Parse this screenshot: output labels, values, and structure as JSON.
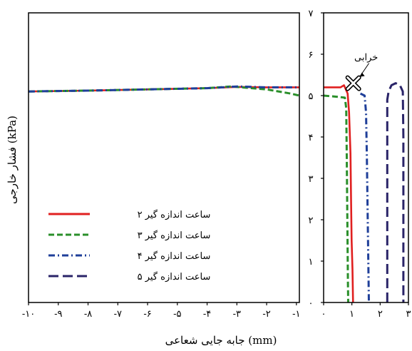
{
  "chart_data": {
    "type": "line",
    "xlabel": "جابه جایی شعاعی (mm)",
    "ylabel": "فشار خارجی (kPa)",
    "x_left_ticks": [
      {
        "v": -10,
        "label": "-۱۰"
      },
      {
        "v": -9,
        "label": "-۹"
      },
      {
        "v": -8,
        "label": "-۸"
      },
      {
        "v": -7,
        "label": "-۷"
      },
      {
        "v": -6,
        "label": "-۶"
      },
      {
        "v": -5,
        "label": "-۵"
      },
      {
        "v": -4,
        "label": "-۴"
      },
      {
        "v": -3,
        "label": "-۳"
      },
      {
        "v": -2,
        "label": "-۲"
      },
      {
        "v": -1,
        "label": "-۱"
      }
    ],
    "x_right_ticks": [
      {
        "v": 0,
        "label": "۰"
      },
      {
        "v": 1,
        "label": "۱"
      },
      {
        "v": 2,
        "label": "۲"
      },
      {
        "v": 3,
        "label": "۳"
      }
    ],
    "y_ticks": [
      {
        "v": 0,
        "label": "۰"
      },
      {
        "v": 1,
        "label": "۱"
      },
      {
        "v": 2,
        "label": "۲"
      },
      {
        "v": 3,
        "label": "۳"
      },
      {
        "v": 4,
        "label": "۴"
      },
      {
        "v": 5,
        "label": "۵"
      },
      {
        "v": 6,
        "label": "۶"
      },
      {
        "v": 7,
        "label": "۷"
      }
    ],
    "ylim": [
      0,
      7
    ],
    "xlim_left": [
      -10,
      -0.9
    ],
    "xlim_right": [
      0,
      3
    ],
    "series": [
      {
        "name": "ساعت اندازه گیر ۲",
        "color": "#e02020",
        "dash": "solid",
        "left": [
          [
            -10,
            5.1
          ],
          [
            -8,
            5.12
          ],
          [
            -6,
            5.15
          ],
          [
            -4,
            5.18
          ],
          [
            -3,
            5.21
          ],
          [
            -2,
            5.2
          ],
          [
            -1,
            5.2
          ],
          [
            -0.9,
            5.2
          ]
        ],
        "right": [
          [
            0,
            5.2
          ],
          [
            0.6,
            5.2
          ],
          [
            0.72,
            5.25
          ],
          [
            0.85,
            5.05
          ],
          [
            0.9,
            4.6
          ],
          [
            0.95,
            3.6
          ],
          [
            0.97,
            2.5
          ],
          [
            0.99,
            1.5
          ],
          [
            1.02,
            0.8
          ],
          [
            1.04,
            0
          ]
        ]
      },
      {
        "name": "ساعت اندازه گیر ۳",
        "color": "#2a8f2a",
        "dash": "dashed",
        "left": [
          [
            -10,
            5.1
          ],
          [
            -8,
            5.12
          ],
          [
            -6,
            5.15
          ],
          [
            -4,
            5.18
          ],
          [
            -3.2,
            5.22
          ],
          [
            -2,
            5.15
          ],
          [
            -1.2,
            5.05
          ],
          [
            -0.9,
            5.0
          ]
        ],
        "right": [
          [
            0,
            5.0
          ],
          [
            0.5,
            4.97
          ],
          [
            0.75,
            4.95
          ],
          [
            0.8,
            4.7
          ],
          [
            0.82,
            3.5
          ],
          [
            0.84,
            2.0
          ],
          [
            0.86,
            0.5
          ],
          [
            0.87,
            0
          ]
        ]
      },
      {
        "name": "ساعت اندازه گیر ۴",
        "color": "#1f3f99",
        "dash": "dashdot",
        "left": [
          [
            -10,
            5.1
          ],
          [
            -8,
            5.12
          ],
          [
            -6,
            5.15
          ],
          [
            -4,
            5.18
          ],
          [
            -3,
            5.22
          ],
          [
            -2,
            5.2
          ],
          [
            -1,
            5.2
          ],
          [
            -0.9,
            5.2
          ]
        ],
        "right": [
          [
            1.3,
            5.05
          ],
          [
            1.45,
            5.0
          ],
          [
            1.5,
            4.6
          ],
          [
            1.53,
            3.5
          ],
          [
            1.56,
            2.0
          ],
          [
            1.58,
            1.0
          ],
          [
            1.6,
            0
          ]
        ]
      },
      {
        "name": "ساعت اندازه گیر ۵",
        "color": "#2a2468",
        "dash": "longdash",
        "left": [],
        "right": [
          [
            2.25,
            0
          ],
          [
            2.25,
            2.5
          ],
          [
            2.25,
            4.9
          ],
          [
            2.3,
            5.1
          ],
          [
            2.4,
            5.25
          ],
          [
            2.55,
            5.3
          ],
          [
            2.7,
            5.25
          ],
          [
            2.8,
            5.1
          ],
          [
            2.82,
            4.0
          ],
          [
            2.82,
            2.0
          ],
          [
            2.82,
            0
          ]
        ]
      }
    ],
    "annotation": {
      "label": "خرابی",
      "x": 1.05,
      "y": 5.3
    },
    "legend_position": "lower-left-of-left-panel"
  }
}
